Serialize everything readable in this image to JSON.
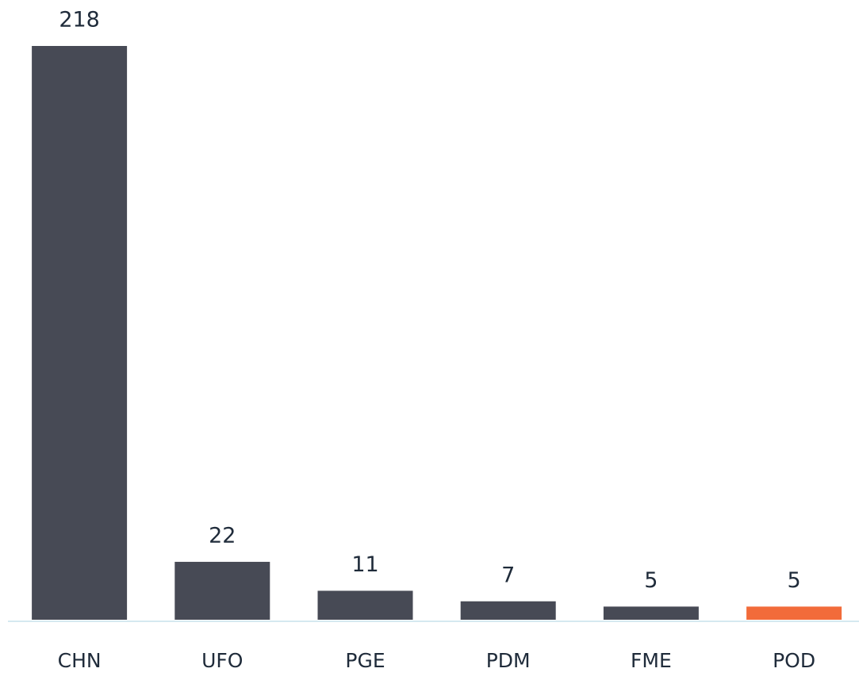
{
  "chart_data": {
    "type": "bar",
    "categories": [
      "CHN",
      "UFO",
      "PGE",
      "PDM",
      "FME",
      "POD"
    ],
    "values": [
      218,
      22,
      11,
      7,
      5,
      5
    ],
    "colors": [
      "#474a55",
      "#474a55",
      "#474a55",
      "#474a55",
      "#474a55",
      "#f26b3a"
    ]
  }
}
